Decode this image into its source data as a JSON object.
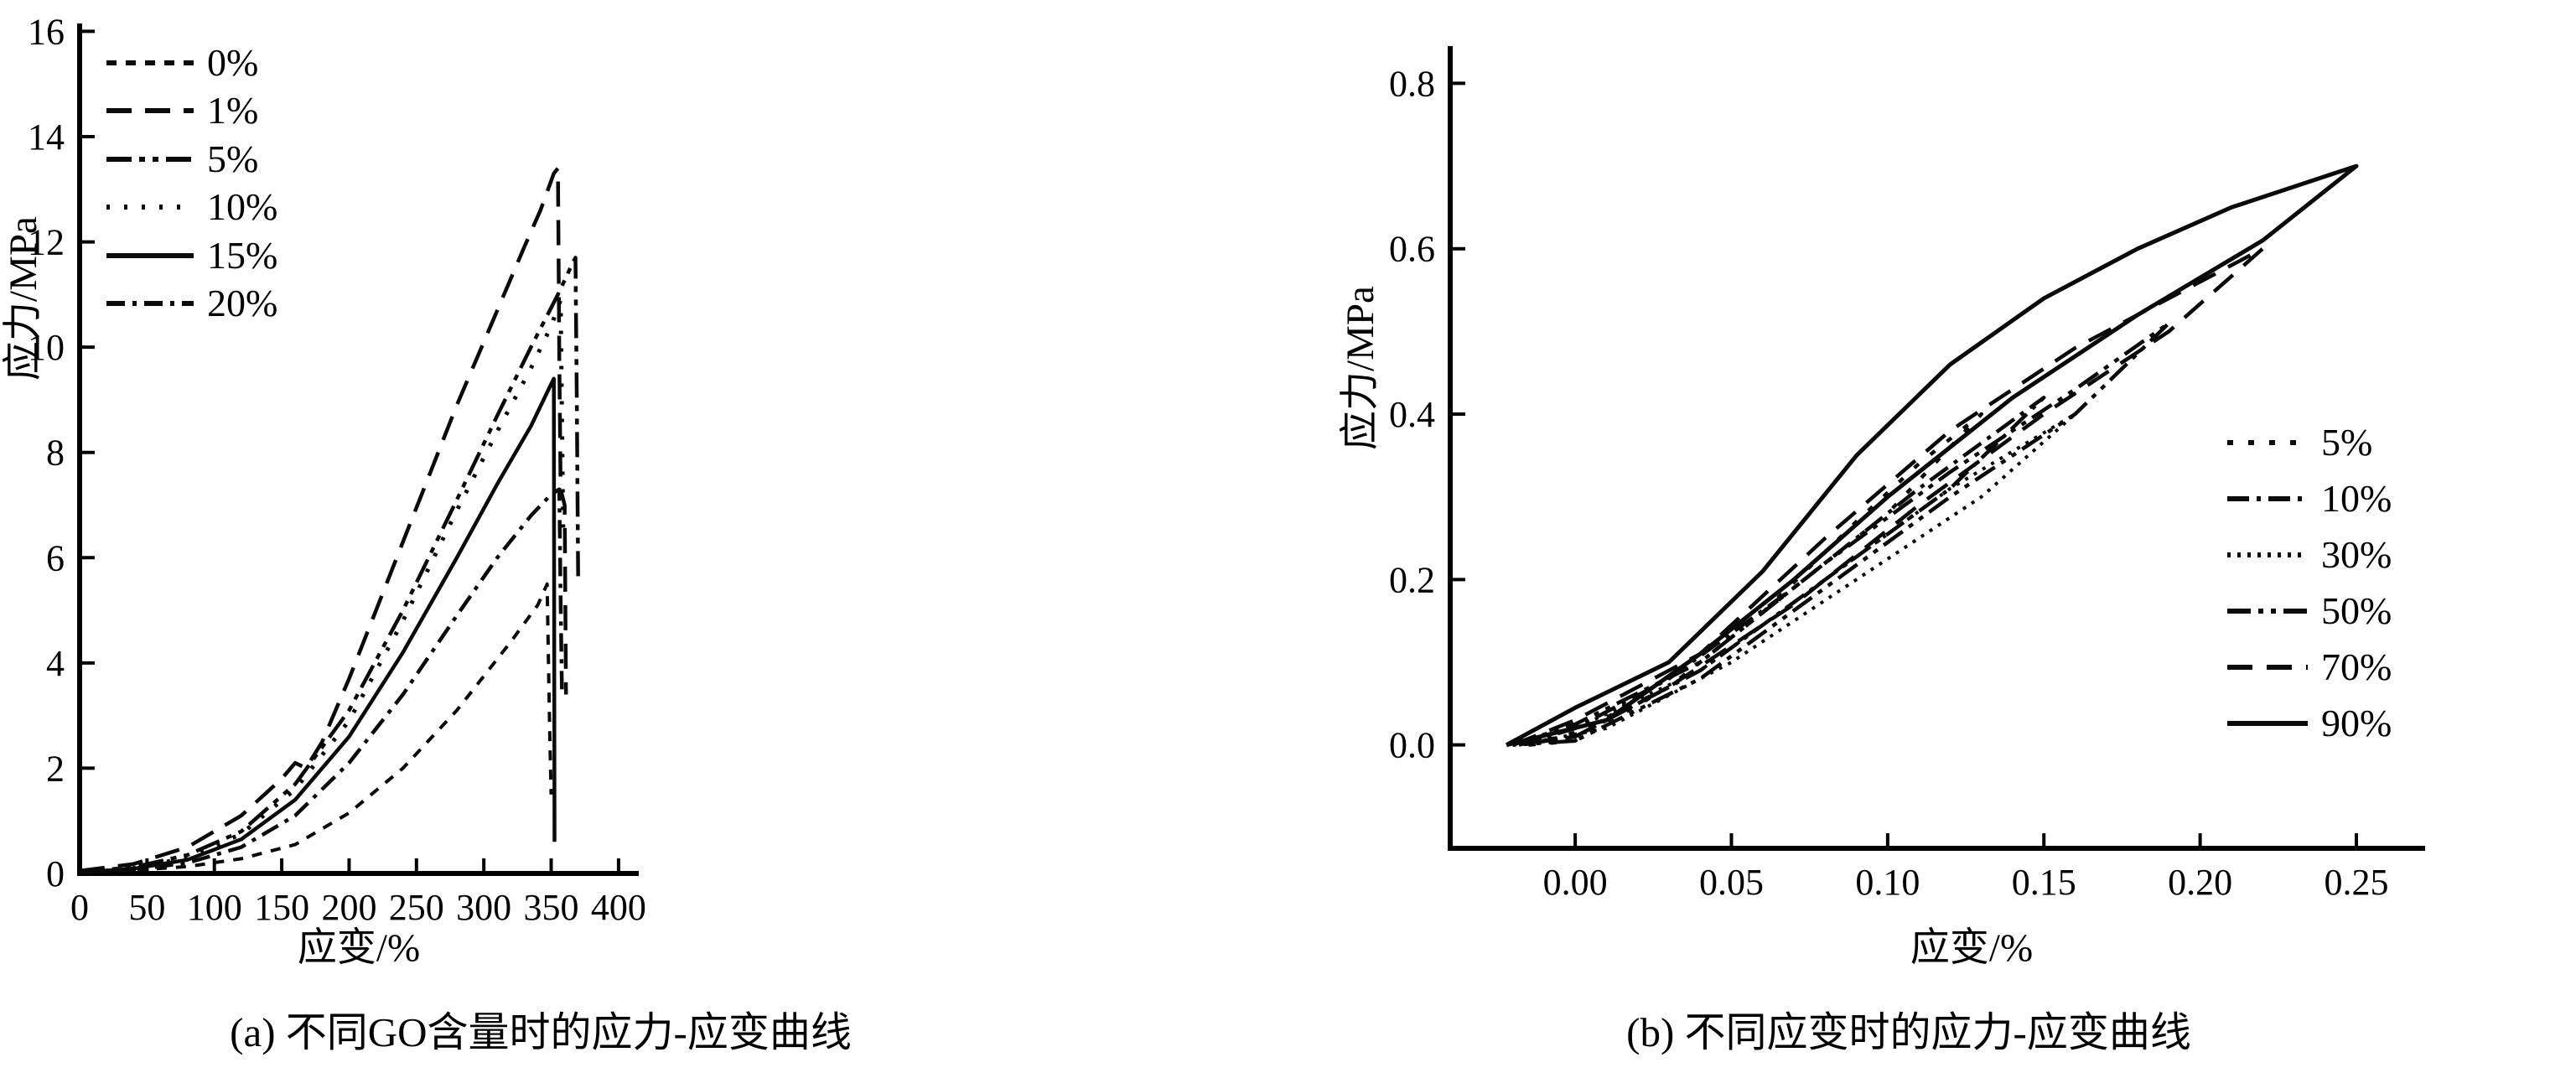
{
  "figure": {
    "caption_a": "(a) 不同GO含量时的应力-应变曲线",
    "caption_b": "(b) 不同应变时的应力-应变曲线"
  },
  "chart_data": [
    {
      "id": "a",
      "type": "line",
      "title": "",
      "xlabel": "应变/%",
      "ylabel": "应力/MPa",
      "xlim": [
        0,
        415
      ],
      "ylim": [
        0,
        16.15
      ],
      "xticks": [
        0,
        50,
        100,
        150,
        200,
        250,
        300,
        350,
        400
      ],
      "xtick_labels": [
        "0",
        "50",
        "100",
        "150",
        "200",
        "250",
        "300",
        "350",
        "400"
      ],
      "yticks": [
        0,
        2,
        4,
        6,
        8,
        10,
        12,
        14,
        16
      ],
      "ytick_labels": [
        "0",
        "2",
        "4",
        "6",
        "8",
        "10",
        "12",
        "14",
        "16"
      ],
      "grid": false,
      "legend_position": "upper-left-inside",
      "series": [
        {
          "name": "0%",
          "color": "#0a0a0a",
          "width": 4,
          "dash": "12 11",
          "points": [
            [
              0,
              0.02
            ],
            [
              40,
              0.06
            ],
            [
              80,
              0.13
            ],
            [
              120,
              0.28
            ],
            [
              160,
              0.55
            ],
            [
              200,
              1.15
            ],
            [
              240,
              2.0
            ],
            [
              280,
              3.1
            ],
            [
              320,
              4.4
            ],
            [
              340,
              5.1
            ],
            [
              347,
              5.5
            ],
            [
              348,
              4.0
            ],
            [
              349,
              2.6
            ],
            [
              350,
              1.5
            ]
          ]
        },
        {
          "name": "1%",
          "color": "#0a0a0a",
          "width": 4.5,
          "dash": "30 16",
          "points": [
            [
              0,
              0.05
            ],
            [
              40,
              0.18
            ],
            [
              80,
              0.5
            ],
            [
              120,
              1.1
            ],
            [
              150,
              1.8
            ],
            [
              160,
              2.1
            ],
            [
              168,
              2.0
            ],
            [
              180,
              2.5
            ],
            [
              200,
              3.7
            ],
            [
              220,
              5.0
            ],
            [
              240,
              6.3
            ],
            [
              260,
              7.6
            ],
            [
              280,
              8.9
            ],
            [
              300,
              10.1
            ],
            [
              315,
              11.0
            ],
            [
              330,
              11.9
            ],
            [
              342,
              12.6
            ],
            [
              352,
              13.3
            ],
            [
              355,
              13.4
            ],
            [
              356,
              9.8
            ],
            [
              357,
              7.3
            ],
            [
              360,
              7.0
            ],
            [
              361,
              3.4
            ]
          ]
        },
        {
          "name": "5%",
          "color": "#0a0a0a",
          "width": 4.5,
          "dash": "30 9 7 9 7 9",
          "points": [
            [
              0,
              0.03
            ],
            [
              40,
              0.12
            ],
            [
              80,
              0.35
            ],
            [
              120,
              0.8
            ],
            [
              160,
              1.7
            ],
            [
              200,
              3.1
            ],
            [
              240,
              5.0
            ],
            [
              280,
              7.1
            ],
            [
              310,
              8.7
            ],
            [
              335,
              10.0
            ],
            [
              355,
              11.0
            ],
            [
              366,
              11.6
            ],
            [
              368,
              11.7
            ],
            [
              369,
              9.0
            ],
            [
              370,
              5.6
            ]
          ]
        },
        {
          "name": "10%",
          "color": "#0a0a0a",
          "width": 5,
          "dash": "4 17",
          "points": [
            [
              0,
              0.03
            ],
            [
              40,
              0.1
            ],
            [
              80,
              0.3
            ],
            [
              120,
              0.75
            ],
            [
              160,
              1.6
            ],
            [
              200,
              2.9
            ],
            [
              240,
              4.8
            ],
            [
              280,
              6.9
            ],
            [
              310,
              8.4
            ],
            [
              335,
              9.6
            ],
            [
              350,
              10.4
            ],
            [
              357,
              10.9
            ],
            [
              358,
              8.6
            ],
            [
              359,
              6.3
            ]
          ]
        },
        {
          "name": "15%",
          "color": "#0a0a0a",
          "width": 4.5,
          "dash": "",
          "points": [
            [
              0,
              0.02
            ],
            [
              40,
              0.09
            ],
            [
              80,
              0.26
            ],
            [
              120,
              0.65
            ],
            [
              160,
              1.4
            ],
            [
              200,
              2.6
            ],
            [
              240,
              4.2
            ],
            [
              280,
              6.0
            ],
            [
              310,
              7.4
            ],
            [
              335,
              8.5
            ],
            [
              350,
              9.3
            ],
            [
              352,
              9.4
            ],
            [
              352.5,
              0.6
            ]
          ]
        },
        {
          "name": "20%",
          "color": "#0a0a0a",
          "width": 4.5,
          "dash": "22 9 5 9",
          "points": [
            [
              0,
              0.02
            ],
            [
              40,
              0.07
            ],
            [
              80,
              0.2
            ],
            [
              120,
              0.5
            ],
            [
              160,
              1.1
            ],
            [
              200,
              2.1
            ],
            [
              240,
              3.4
            ],
            [
              280,
              4.9
            ],
            [
              310,
              6.0
            ],
            [
              335,
              6.8
            ],
            [
              350,
              7.2
            ],
            [
              356,
              7.3
            ],
            [
              357,
              5.2
            ],
            [
              358,
              3.4
            ]
          ]
        }
      ]
    },
    {
      "id": "b",
      "type": "line",
      "title": "",
      "xlabel": "应变/%",
      "ylabel": "应力/MPa",
      "xlim": [
        -0.04,
        0.272
      ],
      "ylim": [
        -0.125,
        0.845
      ],
      "xticks": [
        0.0,
        0.05,
        0.1,
        0.15,
        0.2,
        0.25
      ],
      "xtick_labels": [
        "0.00",
        "0.05",
        "0.10",
        "0.15",
        "0.20",
        "0.25"
      ],
      "yticks": [
        0.0,
        0.2,
        0.4,
        0.6,
        0.8
      ],
      "ytick_labels": [
        "0.0",
        "0.2",
        "0.4",
        "0.6",
        "0.8"
      ],
      "grid": false,
      "legend_position": "center-right-inside",
      "series": [
        {
          "name": "5%",
          "color": "#0a0a0a",
          "width": 4.5,
          "dash": "7 18",
          "points": [
            [
              -0.015,
              0.0
            ],
            [
              0.0,
              0.015
            ],
            [
              0.03,
              0.07
            ],
            [
              0.06,
              0.16
            ],
            [
              0.09,
              0.27
            ],
            [
              0.11,
              0.34
            ],
            [
              0.13,
              0.4
            ],
            [
              0.1,
              0.28
            ],
            [
              0.06,
              0.16
            ],
            [
              0.03,
              0.07
            ],
            [
              0.0,
              0.005
            ],
            [
              -0.015,
              0.0
            ]
          ]
        },
        {
          "name": "10%",
          "color": "#0a0a0a",
          "width": 4.5,
          "dash": "26 9 5 9",
          "points": [
            [
              -0.018,
              0.0
            ],
            [
              0.0,
              0.02
            ],
            [
              0.03,
              0.08
            ],
            [
              0.07,
              0.19
            ],
            [
              0.11,
              0.31
            ],
            [
              0.15,
              0.42
            ],
            [
              0.12,
              0.31
            ],
            [
              0.08,
              0.2
            ],
            [
              0.04,
              0.09
            ],
            [
              0.0,
              0.01
            ],
            [
              -0.018,
              0.0
            ]
          ]
        },
        {
          "name": "30%",
          "color": "#0a0a0a",
          "width": 4,
          "dash": "4 8",
          "points": [
            [
              -0.018,
              0.0
            ],
            [
              0.0,
              0.02
            ],
            [
              0.04,
              0.09
            ],
            [
              0.08,
              0.2
            ],
            [
              0.12,
              0.31
            ],
            [
              0.16,
              0.4
            ],
            [
              0.13,
              0.3
            ],
            [
              0.09,
              0.2
            ],
            [
              0.05,
              0.1
            ],
            [
              0.01,
              0.02
            ],
            [
              -0.018,
              0.0
            ]
          ]
        },
        {
          "name": "50%",
          "color": "#0a0a0a",
          "width": 4.5,
          "dash": "28 9 6 9 6 9",
          "points": [
            [
              -0.02,
              0.0
            ],
            [
              0.0,
              0.025
            ],
            [
              0.04,
              0.1
            ],
            [
              0.08,
              0.22
            ],
            [
              0.12,
              0.33
            ],
            [
              0.16,
              0.43
            ],
            [
              0.19,
              0.51
            ],
            [
              0.16,
              0.4
            ],
            [
              0.12,
              0.3
            ],
            [
              0.08,
              0.19
            ],
            [
              0.04,
              0.08
            ],
            [
              0.0,
              0.005
            ],
            [
              -0.02,
              0.0
            ]
          ]
        },
        {
          "name": "70%",
          "color": "#0a0a0a",
          "width": 4.5,
          "dash": "30 17",
          "points": [
            [
              -0.02,
              0.0
            ],
            [
              0.0,
              0.03
            ],
            [
              0.04,
              0.11
            ],
            [
              0.08,
              0.25
            ],
            [
              0.12,
              0.38
            ],
            [
              0.16,
              0.48
            ],
            [
              0.19,
              0.54
            ],
            [
              0.22,
              0.6
            ],
            [
              0.19,
              0.5
            ],
            [
              0.15,
              0.4
            ],
            [
              0.11,
              0.29
            ],
            [
              0.07,
              0.17
            ],
            [
              0.03,
              0.07
            ],
            [
              0.0,
              0.01
            ],
            [
              -0.02,
              0.0
            ]
          ]
        },
        {
          "name": "90%",
          "color": "#0a0a0a",
          "width": 5,
          "dash": "",
          "points": [
            [
              -0.022,
              0.0
            ],
            [
              0.0,
              0.045
            ],
            [
              0.03,
              0.1
            ],
            [
              0.06,
              0.21
            ],
            [
              0.09,
              0.35
            ],
            [
              0.12,
              0.46
            ],
            [
              0.15,
              0.54
            ],
            [
              0.18,
              0.6
            ],
            [
              0.21,
              0.65
            ],
            [
              0.25,
              0.7
            ],
            [
              0.22,
              0.61
            ],
            [
              0.18,
              0.52
            ],
            [
              0.14,
              0.42
            ],
            [
              0.1,
              0.3
            ],
            [
              0.07,
              0.2
            ],
            [
              0.04,
              0.11
            ],
            [
              0.01,
              0.03
            ],
            [
              -0.022,
              0.0
            ]
          ]
        }
      ]
    }
  ]
}
